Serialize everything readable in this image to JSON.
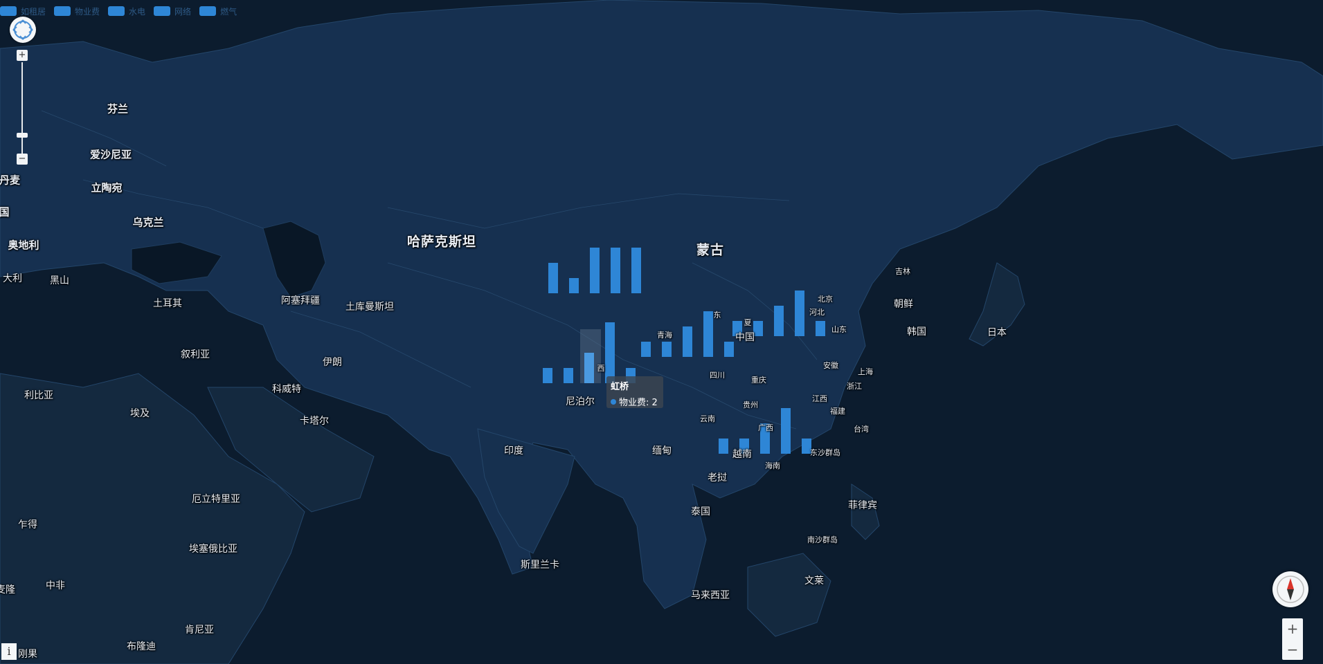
{
  "legend": [
    {
      "label": "如租居",
      "color": "#2e86d6"
    },
    {
      "label": "物业费",
      "color": "#2e86d6"
    },
    {
      "label": "水电",
      "color": "#2e86d6"
    },
    {
      "label": "网络",
      "color": "#2e86d6"
    },
    {
      "label": "燃气",
      "color": "#2e86d6"
    }
  ],
  "labels": [
    {
      "text": "芬兰",
      "size": "mid"
    },
    {
      "text": "爱沙尼亚",
      "size": "mid"
    },
    {
      "text": "丹麦",
      "size": "mid"
    },
    {
      "text": "立陶宛",
      "size": "mid"
    },
    {
      "text": "乌克兰",
      "size": "mid"
    },
    {
      "text": "国",
      "size": "mid"
    },
    {
      "text": "奥地利",
      "size": "mid"
    },
    {
      "text": "大利",
      "size": "sm"
    },
    {
      "text": "黑山",
      "size": "sm"
    },
    {
      "text": "土耳其",
      "size": "sm"
    },
    {
      "text": "阿塞拜疆",
      "size": "sm"
    },
    {
      "text": "土库曼斯坦",
      "size": "sm"
    },
    {
      "text": "哈萨克斯坦",
      "size": "big"
    },
    {
      "text": "蒙古",
      "size": "big"
    },
    {
      "text": "叙利亚",
      "size": "sm"
    },
    {
      "text": "伊朗",
      "size": "sm"
    },
    {
      "text": "科威特",
      "size": "sm"
    },
    {
      "text": "利比亚",
      "size": "sm"
    },
    {
      "text": "埃及",
      "size": "sm"
    },
    {
      "text": "卡塔尔",
      "size": "sm"
    },
    {
      "text": "尼泊尔",
      "size": "sm"
    },
    {
      "text": "印度",
      "size": "sm"
    },
    {
      "text": "缅甸",
      "size": "sm"
    },
    {
      "text": "老挝",
      "size": "sm"
    },
    {
      "text": "泰国",
      "size": "sm"
    },
    {
      "text": "越南",
      "size": "sm"
    },
    {
      "text": "斯里兰卡",
      "size": "sm"
    },
    {
      "text": "马来西亚",
      "size": "sm"
    },
    {
      "text": "文莱",
      "size": "sm"
    },
    {
      "text": "菲律宾",
      "size": "sm"
    },
    {
      "text": "乍得",
      "size": "sm"
    },
    {
      "text": "中非",
      "size": "sm"
    },
    {
      "text": "厄立特里亚",
      "size": "sm"
    },
    {
      "text": "埃塞俄比亚",
      "size": "sm"
    },
    {
      "text": "肯尼亚",
      "size": "sm"
    },
    {
      "text": "布隆迪",
      "size": "sm"
    },
    {
      "text": "刚果",
      "size": "sm"
    },
    {
      "text": "麦隆",
      "size": "sm"
    },
    {
      "text": "朝鲜",
      "size": "sm"
    },
    {
      "text": "韩国",
      "size": "sm"
    },
    {
      "text": "日本",
      "size": "sm"
    },
    {
      "text": "中国",
      "size": "sm"
    },
    {
      "text": "吉林",
      "size": "xs"
    },
    {
      "text": "北京",
      "size": "xs"
    },
    {
      "text": "河北",
      "size": "xs"
    },
    {
      "text": "山东",
      "size": "xs"
    },
    {
      "text": "青海",
      "size": "xs"
    },
    {
      "text": "西",
      "size": "xs"
    },
    {
      "text": "四川",
      "size": "xs"
    },
    {
      "text": "重庆",
      "size": "xs"
    },
    {
      "text": "安徽",
      "size": "xs"
    },
    {
      "text": "上海",
      "size": "xs"
    },
    {
      "text": "浙江",
      "size": "xs"
    },
    {
      "text": "江西",
      "size": "xs"
    },
    {
      "text": "贵州",
      "size": "xs"
    },
    {
      "text": "福建",
      "size": "xs"
    },
    {
      "text": "云南",
      "size": "xs"
    },
    {
      "text": "广西",
      "size": "xs"
    },
    {
      "text": "台湾",
      "size": "xs"
    },
    {
      "text": "东沙群岛",
      "size": "xs"
    },
    {
      "text": "海南",
      "size": "xs"
    },
    {
      "text": "南沙群岛",
      "size": "xs"
    },
    {
      "text": "东",
      "size": "xs"
    },
    {
      "text": "夏",
      "size": "xs"
    }
  ],
  "chart_data": {
    "type": "bar",
    "series": [
      {
        "values": [
          2,
          1,
          3,
          3,
          3
        ]
      },
      {
        "values": [
          1,
          1,
          2,
          4,
          1
        ]
      },
      {
        "values": [
          1,
          1,
          2,
          3,
          1
        ]
      },
      {
        "values": [
          1,
          1,
          2,
          3,
          1
        ]
      },
      {
        "values": [
          1,
          1,
          2,
          3,
          1
        ]
      }
    ],
    "highlight": {
      "group": 1,
      "index": 2
    }
  },
  "tooltip": {
    "title": "虹桥",
    "series_name": "物业费",
    "value": "2",
    "text": "物业费: 2"
  },
  "controls": {
    "zoom_in": "+",
    "zoom_out": "−",
    "info": "i"
  }
}
